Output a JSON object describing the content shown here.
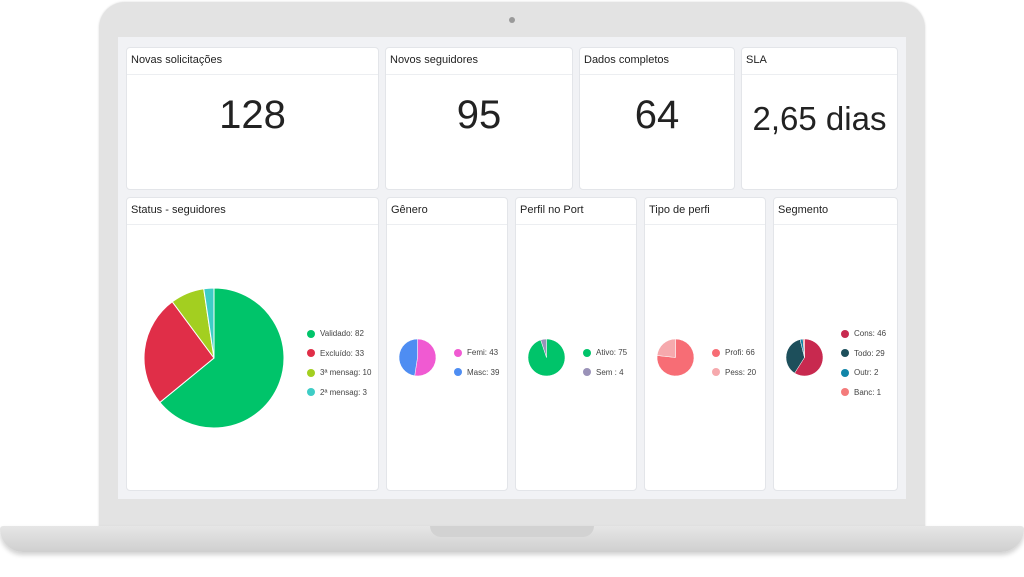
{
  "kpis": [
    {
      "title": "Novas solicitações",
      "value": "128"
    },
    {
      "title": "Novos seguidores",
      "value": "95"
    },
    {
      "title": "Dados completos",
      "value": "64"
    },
    {
      "title": "SLA",
      "value": "2,65 dias"
    }
  ],
  "chart_data": [
    {
      "type": "pie",
      "title": "Status - seguidores",
      "slices": [
        {
          "label": "Validado: 82",
          "value": 82,
          "color": "#00c46a"
        },
        {
          "label": "Excluído: 33",
          "value": 33,
          "color": "#e02e48"
        },
        {
          "label": "3ª mensag: 10",
          "value": 10,
          "color": "#a3cf20"
        },
        {
          "label": "2ª mensag: 3",
          "value": 3,
          "color": "#3ecdc6"
        }
      ]
    },
    {
      "type": "pie",
      "title": "Gênero",
      "slices": [
        {
          "label": "Femi: 43",
          "value": 43,
          "color": "#f05ad2"
        },
        {
          "label": "Masc: 39",
          "value": 39,
          "color": "#4e8df2"
        }
      ]
    },
    {
      "type": "pie",
      "title": "Perfil no Port",
      "slices": [
        {
          "label": "Ativo: 75",
          "value": 75,
          "color": "#00c46a"
        },
        {
          "label": "Sem : 4",
          "value": 4,
          "color": "#9a92b8"
        }
      ]
    },
    {
      "type": "pie",
      "title": "Tipo de perfi",
      "slices": [
        {
          "label": "Profi: 66",
          "value": 66,
          "color": "#f76d75"
        },
        {
          "label": "Pess: 20",
          "value": 20,
          "color": "#f6a9ad"
        }
      ]
    },
    {
      "type": "pie",
      "title": "Segmento",
      "slices": [
        {
          "label": "Cons: 46",
          "value": 46,
          "color": "#c8294f"
        },
        {
          "label": "Todo: 29",
          "value": 29,
          "color": "#1d4f5b"
        },
        {
          "label": "Outr: 2",
          "value": 2,
          "color": "#1185a8"
        },
        {
          "label": "Banc: 1",
          "value": 1,
          "color": "#f47b7b"
        }
      ]
    }
  ]
}
